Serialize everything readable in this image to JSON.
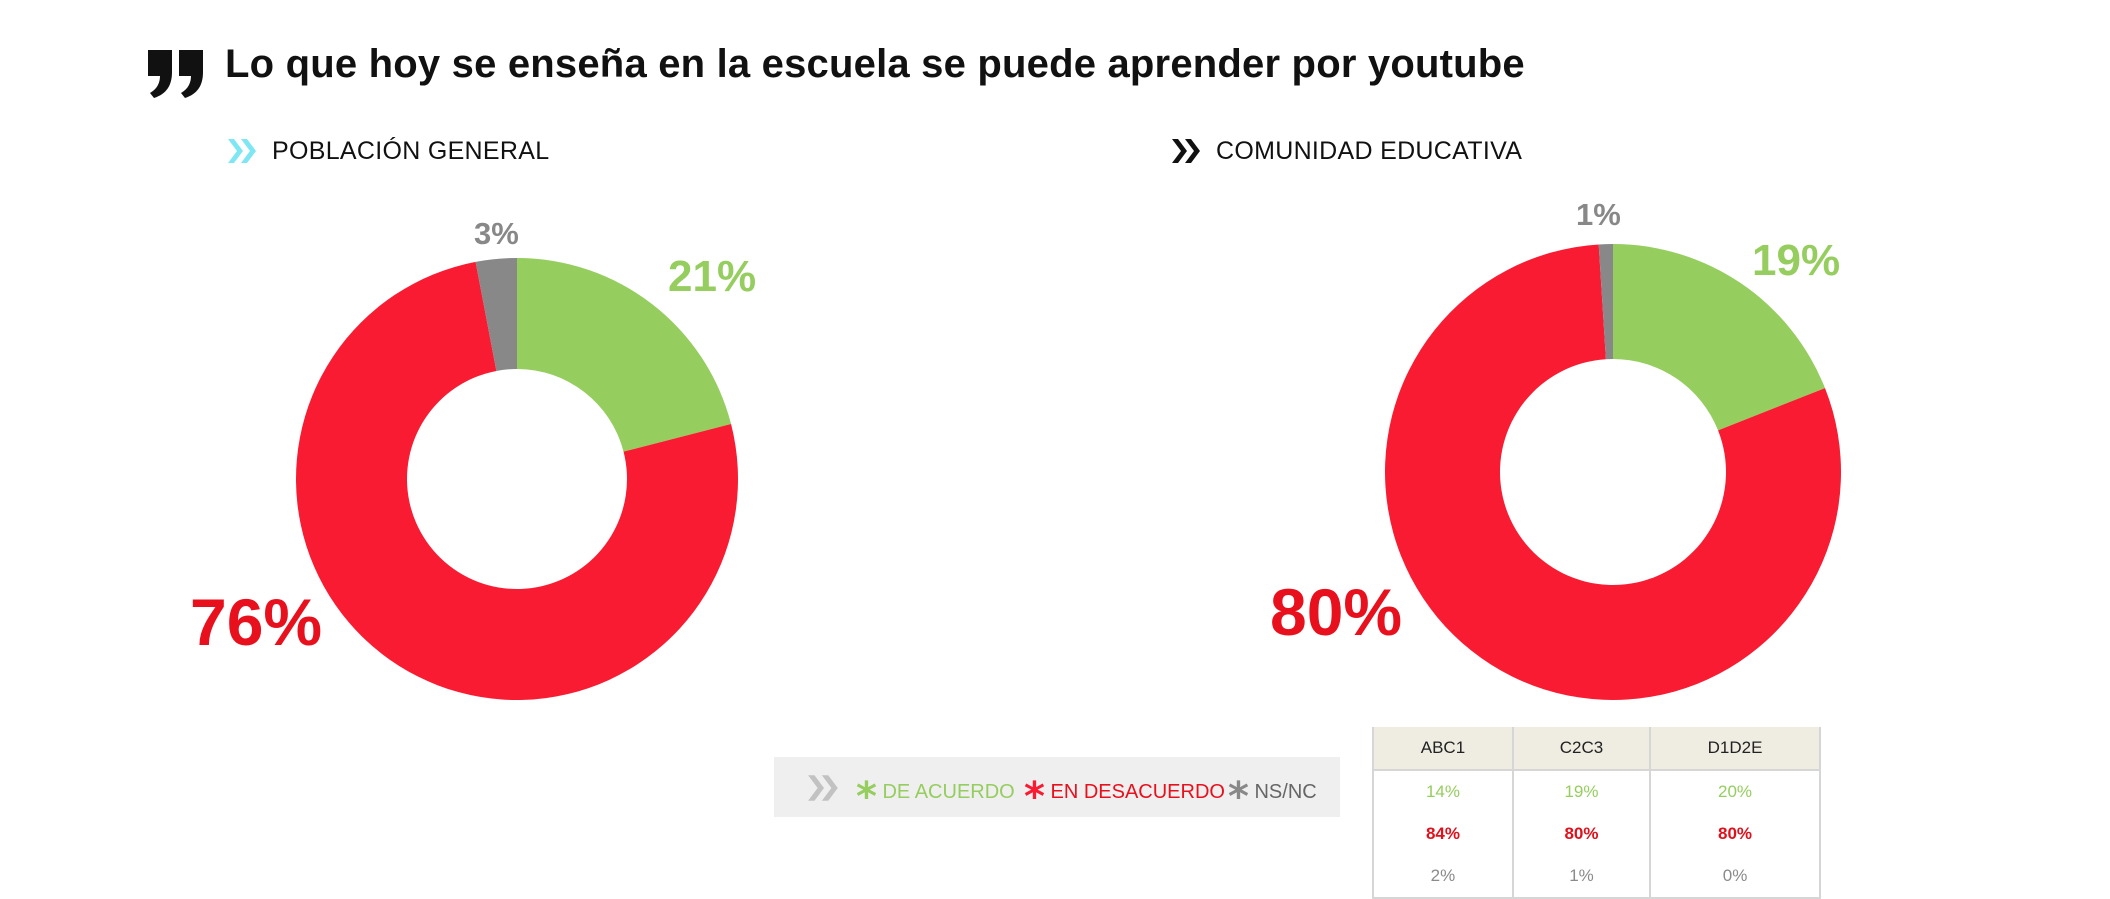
{
  "title": "Lo que hoy se enseña en la escuela se puede aprender por youtube",
  "colors": {
    "agree": "#95cd5e",
    "disagree": "#f91b31",
    "nsnc": "#888888",
    "disagree_text": "#e8101c",
    "cyan": "#7fe7f3"
  },
  "chart_data": [
    {
      "type": "pie",
      "subtitle": "POBLACIÓN GENERAL",
      "slices": [
        {
          "label": "DE ACUERDO",
          "value": 21,
          "text": "21%"
        },
        {
          "label": "EN DESACUERDO",
          "value": 76,
          "text": "76%"
        },
        {
          "label": "NS/NC",
          "value": 3,
          "text": "3%"
        }
      ]
    },
    {
      "type": "pie",
      "subtitle": "COMUNIDAD EDUCATIVA",
      "slices": [
        {
          "label": "DE ACUERDO",
          "value": 19,
          "text": "19%"
        },
        {
          "label": "EN DESACUERDO",
          "value": 80,
          "text": "80%"
        },
        {
          "label": "NS/NC",
          "value": 1,
          "text": "1%"
        }
      ]
    },
    {
      "type": "table",
      "columns": [
        "ABC1",
        "C2C3",
        "D1D2E"
      ],
      "rows": [
        [
          "14%",
          "19%",
          "20%"
        ],
        [
          "84%",
          "80%",
          "80%"
        ],
        [
          "2%",
          "1%",
          "0%"
        ]
      ]
    }
  ],
  "legend": {
    "items": [
      {
        "label": "DE ACUERDO",
        "star": "*"
      },
      {
        "label": "EN DESACUERDO",
        "star": "*"
      },
      {
        "label": "NS/NC",
        "star": "*"
      }
    ]
  }
}
